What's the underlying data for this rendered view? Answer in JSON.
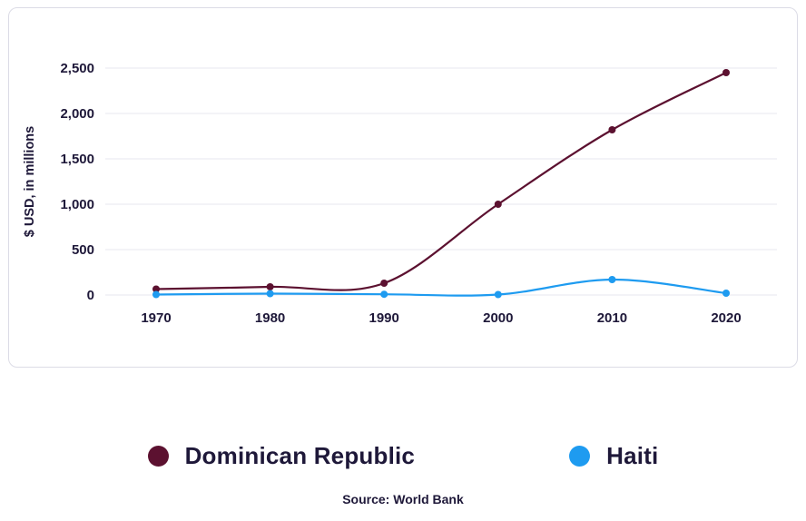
{
  "source": "Source: World Bank",
  "colors": {
    "grid": "#e7e7ef",
    "text": "#1e1839",
    "card_border": "#dcdce6",
    "background": "#ffffff"
  },
  "chart_data": {
    "type": "line",
    "x": [
      1970,
      1980,
      1990,
      2000,
      2010,
      2020
    ],
    "series": [
      {
        "name": "Dominican Republic",
        "color": "#5c1130",
        "values": [
          65,
          90,
          130,
          1000,
          1820,
          2450
        ]
      },
      {
        "name": "Haiti",
        "color": "#1e9bf0",
        "values": [
          5,
          15,
          8,
          5,
          170,
          20
        ]
      }
    ],
    "title": "",
    "xlabel": "",
    "ylabel": "$ USD, in millions",
    "ylim": [
      0,
      2500
    ],
    "yticks": [
      0,
      500,
      1000,
      1500,
      2000,
      2500
    ],
    "grid": true,
    "legend_position": "bottom"
  }
}
